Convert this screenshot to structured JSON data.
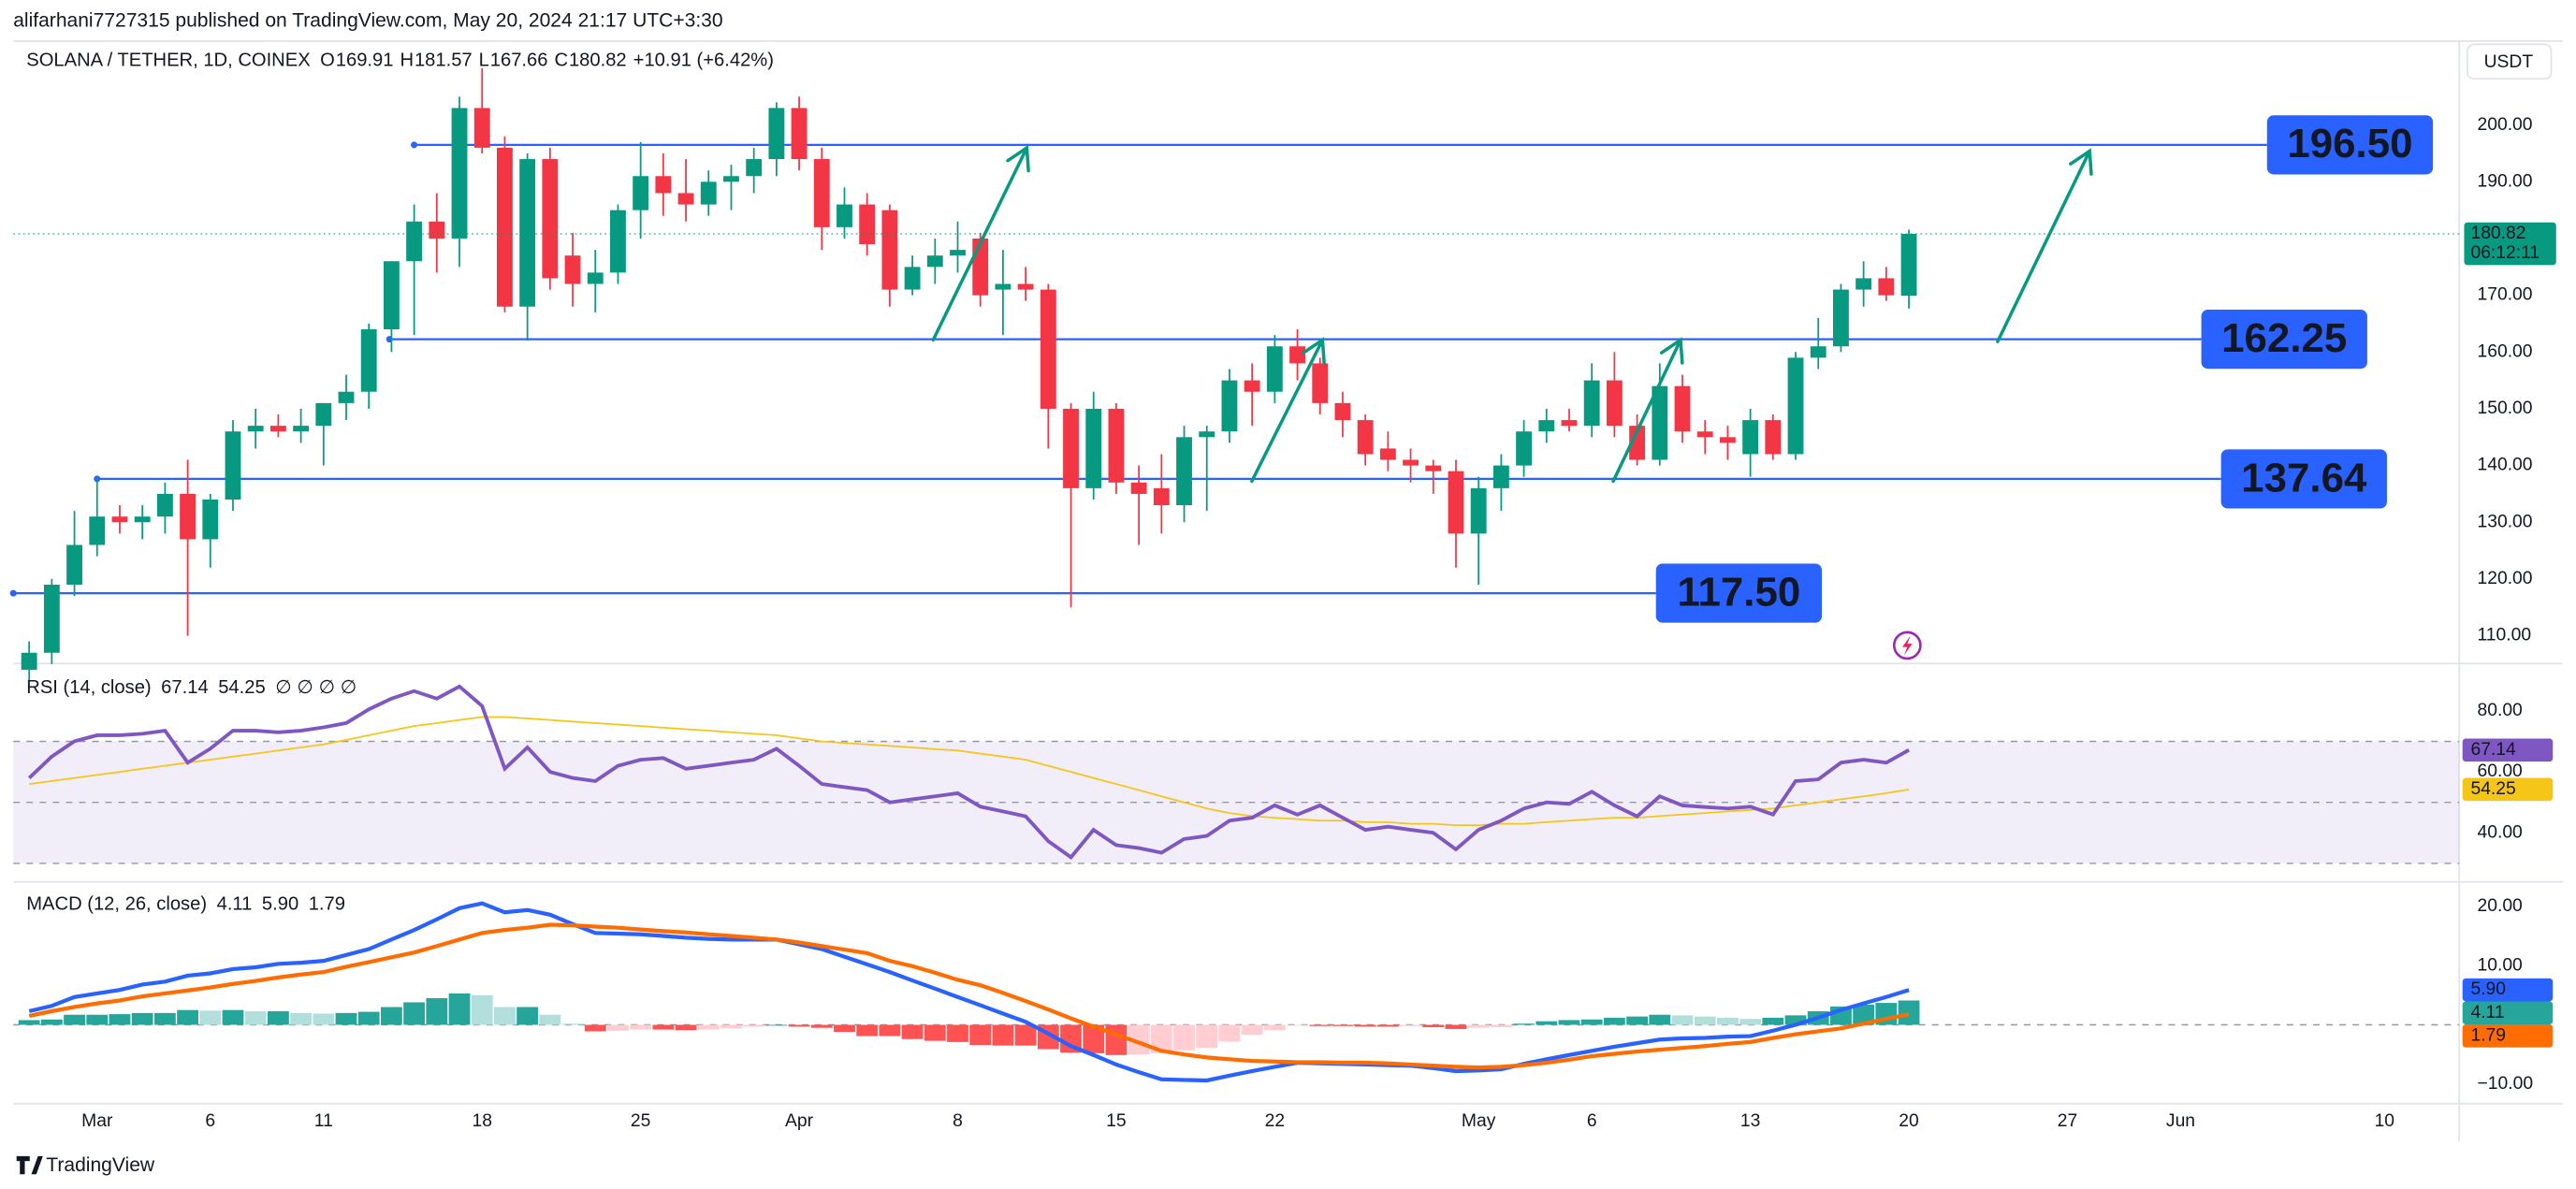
{
  "header": {
    "published": "alifarhani7727315 published on TradingView.com, May 20, 2024 21:17 UTC+3:30",
    "currency": "USDT",
    "countdown": "06:12:11",
    "footer": "TradingView"
  },
  "chart_data": [
    {
      "type": "candlestick",
      "title": "SOLANA / TETHER, 1D, COINEX",
      "ohlc_labels": [
        "O",
        "H",
        "L",
        "C"
      ],
      "change": "+10.91 (+6.42%)",
      "up_color": "#089981",
      "down_color": "#f23645",
      "level_color": "#2962ff",
      "open": [
        104,
        107,
        119,
        126,
        131,
        130,
        131,
        135,
        127,
        134,
        146,
        147,
        146,
        147,
        151,
        153,
        164,
        176,
        183,
        180,
        203,
        196,
        168,
        194,
        177,
        172,
        174,
        185,
        191,
        188,
        186,
        190,
        191,
        194,
        203,
        194,
        182,
        186,
        185,
        171,
        175,
        177,
        180,
        171,
        172,
        171,
        150,
        136,
        150,
        137,
        136,
        133,
        145,
        146,
        155,
        153,
        161,
        158,
        151,
        148,
        143,
        141,
        140,
        139,
        128,
        136,
        140,
        146,
        148,
        147,
        155,
        147,
        141,
        154,
        146,
        145,
        142,
        148,
        142,
        159,
        161,
        171,
        173,
        169.91
      ],
      "high": [
        109,
        120,
        132,
        138,
        133,
        133,
        137,
        141,
        135,
        148,
        150,
        149,
        150,
        151,
        156,
        165,
        176,
        186,
        188,
        205,
        210,
        198,
        195,
        196,
        181,
        178,
        186,
        197,
        195,
        194,
        192,
        193,
        196,
        204,
        205,
        196,
        189,
        188,
        186,
        177,
        180,
        183,
        181,
        178,
        175,
        172,
        151,
        153,
        151,
        140,
        142,
        147,
        147,
        157,
        158,
        163,
        164,
        159,
        153,
        149,
        146,
        143,
        141,
        141,
        138,
        142,
        148,
        150,
        150,
        158,
        160,
        149,
        158,
        156,
        148,
        147,
        150,
        149,
        160,
        166,
        172,
        176,
        175,
        181.57
      ],
      "low": [
        102,
        105,
        117,
        124,
        128,
        127,
        128,
        110,
        122,
        132,
        143,
        145,
        144,
        140,
        148,
        150,
        160,
        163,
        174,
        175,
        195,
        167,
        162,
        171,
        168,
        167,
        172,
        180,
        184,
        183,
        184,
        185,
        188,
        191,
        192,
        178,
        180,
        177,
        168,
        170,
        172,
        174,
        168,
        163,
        169,
        143,
        115,
        134,
        135,
        126,
        128,
        130,
        132,
        144,
        147,
        151,
        155,
        149,
        145,
        140,
        139,
        137,
        135,
        122,
        119,
        132,
        138,
        144,
        146,
        145,
        145,
        140,
        140,
        144,
        142,
        141,
        138,
        141,
        141,
        157,
        160,
        168,
        169,
        167.66
      ],
      "close": [
        107,
        119,
        126,
        131,
        130,
        131,
        135,
        127,
        134,
        146,
        147,
        146,
        147,
        151,
        153,
        164,
        176,
        183,
        180,
        203,
        196,
        168,
        194,
        173,
        172,
        174,
        185,
        191,
        188,
        186,
        190,
        191,
        194,
        203,
        194,
        182,
        186,
        179,
        171,
        175,
        177,
        178,
        170,
        172,
        171,
        150,
        136,
        150,
        137,
        135,
        133,
        145,
        146,
        155,
        153,
        161,
        158,
        151,
        148,
        142,
        141,
        140,
        139,
        128,
        136,
        140,
        146,
        148,
        147,
        155,
        147,
        141,
        154,
        146,
        145,
        144,
        148,
        142,
        159,
        161,
        171,
        173,
        170,
        180.82
      ],
      "xlim": [
        -0.7,
        107.3
      ],
      "xticks": [
        {
          "value": 3,
          "label": "Mar"
        },
        {
          "value": 8,
          "label": "6"
        },
        {
          "value": 13,
          "label": "11"
        },
        {
          "value": 20,
          "label": "18"
        },
        {
          "value": 27,
          "label": "25"
        },
        {
          "value": 34,
          "label": "Apr"
        },
        {
          "value": 41,
          "label": "8"
        },
        {
          "value": 48,
          "label": "15"
        },
        {
          "value": 55,
          "label": "22"
        },
        {
          "value": 64,
          "label": "May"
        },
        {
          "value": 69,
          "label": "6"
        },
        {
          "value": 76,
          "label": "13"
        },
        {
          "value": 83,
          "label": "20"
        },
        {
          "value": 90,
          "label": "27"
        },
        {
          "value": 95,
          "label": "Jun"
        },
        {
          "value": 104,
          "label": "10"
        }
      ],
      "ylim": [
        105.4,
        214.8
      ],
      "yticks": [
        {
          "value": 110,
          "label": "110.00"
        },
        {
          "value": 120,
          "label": "120.00"
        },
        {
          "value": 130,
          "label": "130.00"
        },
        {
          "value": 140,
          "label": "140.00"
        },
        {
          "value": 150,
          "label": "150.00"
        },
        {
          "value": 160,
          "label": "160.00"
        },
        {
          "value": 170,
          "label": "170.00"
        },
        {
          "value": 180,
          "label": "180.00"
        },
        {
          "value": 190,
          "label": "190.00"
        },
        {
          "value": 200,
          "label": "200.00"
        }
      ],
      "levels": [
        {
          "value": 196.5,
          "label": "196.50"
        },
        {
          "value": 162.25,
          "label": "162.25"
        },
        {
          "value": 137.64,
          "label": "137.64"
        },
        {
          "value": 117.5,
          "label": "117.50"
        }
      ]
    },
    {
      "type": "rsi",
      "title": "RSI (14, close)",
      "placeholders": "∅ ∅ ∅ ∅",
      "band": [
        30,
        70
      ],
      "midline": 50,
      "band_color": "#7e57c2",
      "series": [
        {
          "color": "#7e57c2",
          "values": [
            58,
            65,
            70,
            72,
            72,
            72.5,
            73.5,
            63,
            67.6,
            73.5,
            73.5,
            73,
            73.5,
            74.6,
            76,
            80.5,
            84,
            86.5,
            84,
            88,
            81.6,
            61,
            68,
            60,
            58,
            57,
            62,
            64,
            64.5,
            61,
            62,
            63,
            64,
            67.6,
            62,
            56,
            55,
            54,
            50,
            51,
            52,
            53,
            48.6,
            47,
            45.4,
            37.3,
            32,
            41,
            36,
            35,
            33.5,
            38,
            39,
            44,
            45,
            49,
            46,
            49,
            45,
            41,
            42,
            41,
            40,
            34.6,
            41,
            44,
            48,
            50,
            49.5,
            53.5,
            49,
            45.4,
            52,
            49,
            48.5,
            48,
            48.6,
            46,
            57,
            57.5,
            63,
            64,
            63,
            67.14
          ]
        },
        {
          "color": "#f5c518",
          "values": [
            56,
            57,
            58,
            59,
            60,
            61,
            62,
            63,
            64,
            65,
            66,
            67,
            68,
            69,
            70.5,
            72,
            73.5,
            75,
            76,
            77,
            78,
            78,
            77.5,
            77,
            76.5,
            76,
            75.5,
            75,
            74.5,
            74,
            73.5,
            73,
            72.5,
            72,
            71,
            70,
            69.5,
            69,
            68.5,
            68,
            67.5,
            67,
            66,
            65,
            64,
            62,
            60,
            58,
            56,
            54,
            52,
            50,
            48,
            46.5,
            45.5,
            45,
            44.5,
            44,
            44,
            43.5,
            43.5,
            43,
            43,
            42.5,
            42.5,
            43,
            43,
            43.5,
            44,
            44.5,
            45,
            45,
            45.5,
            46,
            46.5,
            47,
            47.5,
            48,
            49,
            50,
            51,
            52,
            53,
            54.25
          ]
        }
      ],
      "ylim": [
        25,
        95
      ],
      "yticks": [
        {
          "value": 40,
          "label": "40.00"
        },
        {
          "value": 60,
          "label": "60.00"
        },
        {
          "value": 80,
          "label": "80.00"
        }
      ]
    },
    {
      "type": "macd",
      "title": "MACD (12, 26, close)",
      "histogram": {
        "colors": [
          "#26a69a",
          "#b2dfdb",
          "#ff5252",
          "#ffcdd2"
        ],
        "values": [
          0.8,
          0.9,
          1.7,
          1.7,
          1.8,
          2,
          2,
          2.5,
          2.4,
          2.5,
          2.3,
          2.3,
          2,
          1.9,
          2,
          2.2,
          3,
          3.8,
          4.5,
          5.3,
          5,
          3,
          3,
          1.7,
          0.2,
          -1.1,
          -1,
          -0.8,
          -0.8,
          -0.9,
          -0.8,
          -0.6,
          -0.3,
          0,
          -0.3,
          -0.5,
          -1.2,
          -1.9,
          -1.9,
          -2.4,
          -2.7,
          -2.9,
          -3.4,
          -3.5,
          -3.5,
          -4.1,
          -4.7,
          -4.8,
          -5.1,
          -5,
          -4.8,
          -4.3,
          -3.9,
          -2.8,
          -1.7,
          -0.9,
          -0.1,
          -0.2,
          -0.2,
          -0.3,
          -0.3,
          -0.2,
          -0.4,
          -0.7,
          -0.5,
          -0.4,
          0.2,
          0.6,
          0.8,
          0.9,
          1.2,
          1.4,
          1.7,
          1.6,
          1.4,
          1.2,
          1,
          1.2,
          1.6,
          2.3,
          3.1,
          3.4,
          3.7,
          4.11
        ]
      },
      "series": [
        {
          "color": "#2962ff",
          "values": [
            2.3,
            3.2,
            4.7,
            5.3,
            5.9,
            6.8,
            7.3,
            8.3,
            8.7,
            9.4,
            9.7,
            10.3,
            10.5,
            10.8,
            11.8,
            12.8,
            14.4,
            16,
            17.8,
            19.7,
            20.5,
            19,
            19.4,
            18.6,
            17,
            15.5,
            15.4,
            15.3,
            15,
            14.7,
            14.5,
            14.4,
            14.4,
            14.4,
            13.6,
            12.8,
            11.5,
            10.2,
            8.9,
            7.5,
            6.1,
            4.7,
            3.3,
            1.9,
            0.5,
            -1.5,
            -3.6,
            -5.1,
            -6.7,
            -8,
            -9.2,
            -9.3,
            -9.4,
            -8.6,
            -7.8,
            -7.1,
            -6.4,
            -6.5,
            -6.6,
            -6.7,
            -6.8,
            -6.9,
            -7.3,
            -7.8,
            -7.7,
            -7.5,
            -6.6,
            -5.8,
            -5.1,
            -4.4,
            -3.7,
            -3.1,
            -2.5,
            -2.3,
            -2.2,
            -2,
            -1.9,
            -1,
            0,
            1.2,
            2.5,
            3.6,
            4.7,
            5.9
          ],
          "value_labels": [
            null,
            null,
            null,
            null,
            null,
            null,
            null,
            null,
            null,
            null,
            null,
            null,
            null,
            null,
            null,
            null,
            null,
            null,
            null,
            null,
            null,
            null,
            null,
            null,
            null,
            null,
            null,
            null,
            null,
            null,
            null,
            null,
            null,
            null,
            null,
            null,
            null,
            null,
            null,
            null,
            null,
            null,
            null,
            null,
            null,
            null,
            null,
            null,
            null,
            null,
            null,
            null,
            null,
            null,
            null,
            null,
            null,
            null,
            null,
            null,
            null,
            null,
            null,
            null,
            null,
            null,
            null,
            null,
            null,
            null,
            null,
            null,
            null,
            null,
            null,
            null,
            null,
            null,
            null,
            null,
            null,
            null,
            null,
            "5.90"
          ]
        },
        {
          "color": "#ff6d00",
          "values": [
            1.5,
            2.3,
            3,
            3.6,
            4.1,
            4.8,
            5.3,
            5.8,
            6.3,
            6.9,
            7.4,
            8,
            8.5,
            8.9,
            9.8,
            10.6,
            11.4,
            12.2,
            13.3,
            14.4,
            15.5,
            16,
            16.4,
            16.9,
            16.8,
            16.6,
            16.4,
            16.1,
            15.8,
            15.6,
            15.3,
            15,
            14.7,
            14.4,
            13.9,
            13.3,
            12.7,
            12.1,
            10.8,
            9.9,
            8.8,
            7.6,
            6.7,
            5.4,
            4,
            2.6,
            1.1,
            -0.3,
            -1.6,
            -3,
            -4.4,
            -5,
            -5.5,
            -5.8,
            -6.1,
            -6.2,
            -6.3,
            -6.3,
            -6.4,
            -6.4,
            -6.5,
            -6.7,
            -6.9,
            -7.1,
            -7.2,
            -7.1,
            -6.8,
            -6.4,
            -5.9,
            -5.3,
            -4.9,
            -4.5,
            -4.2,
            -3.9,
            -3.6,
            -3.2,
            -2.9,
            -2.2,
            -1.6,
            -1.1,
            -0.6,
            0.2,
            1,
            1.79
          ]
        }
      ],
      "ylim": [
        -13.3,
        23.3
      ],
      "yticks": [
        {
          "value": -10,
          "label": "−10.00"
        },
        {
          "value": 10,
          "label": "10.00"
        },
        {
          "value": 20,
          "label": "20.00"
        }
      ]
    }
  ]
}
